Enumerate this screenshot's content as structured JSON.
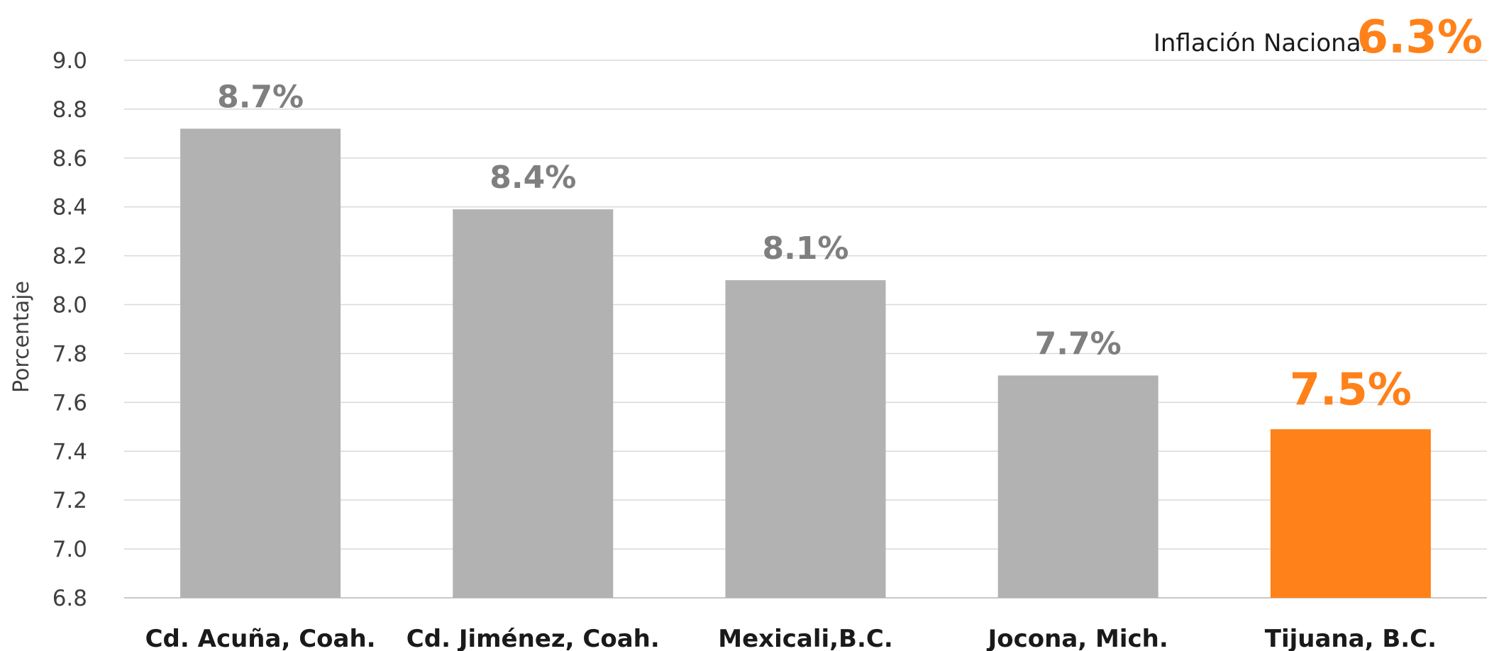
{
  "chart_data": {
    "type": "bar",
    "categories": [
      "Cd. Acuña, Coah.",
      "Cd. Jiménez, Coah.",
      "Mexicali,B.C.",
      "Jocona, Mich.",
      "Tijuana, B.C."
    ],
    "values": [
      8.72,
      8.39,
      8.1,
      7.71,
      7.49
    ],
    "data_labels": [
      "8.7%",
      "8.4%",
      "8.1%",
      "7.7%",
      "7.5%"
    ],
    "highlight_index": 4,
    "ylabel": "Porcentaje",
    "xlabel": "",
    "ylim": [
      6.8,
      9.0
    ],
    "yticks": [
      "6.8",
      "7.0",
      "7.2",
      "7.4",
      "7.6",
      "7.8",
      "8.0",
      "8.2",
      "8.4",
      "8.6",
      "8.8",
      "9.0"
    ],
    "grid": true,
    "annotation": {
      "label": "Inflación Nacional",
      "value": "6.3%"
    }
  },
  "colors": {
    "bar": "#b2b2b2",
    "highlight": "#ff8119",
    "label": "#7f7f7f"
  }
}
